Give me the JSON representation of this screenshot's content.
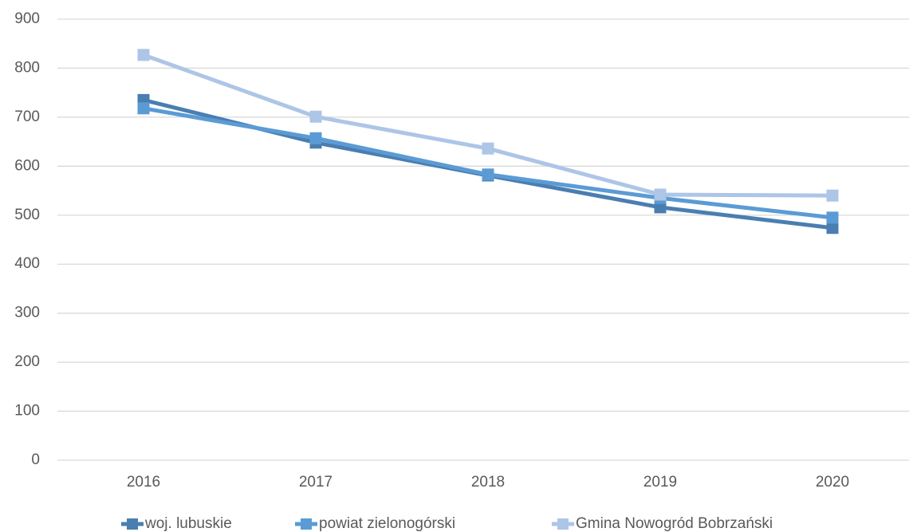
{
  "chart_data": {
    "type": "line",
    "categories": [
      "2016",
      "2017",
      "2018",
      "2019",
      "2020"
    ],
    "series": [
      {
        "name": "woj. lubuskie",
        "color": "#4a7eb0",
        "values": [
          735,
          648,
          581,
          516,
          474
        ]
      },
      {
        "name": "powiat zielonogórski",
        "color": "#5b9bd5",
        "values": [
          718,
          657,
          583,
          535,
          495
        ]
      },
      {
        "name": "Gmina Nowogród Bobrzański",
        "color": "#adc5e7",
        "values": [
          827,
          701,
          636,
          542,
          540
        ]
      }
    ],
    "ylim": [
      0,
      900
    ],
    "yticks": [
      0,
      100,
      200,
      300,
      400,
      500,
      600,
      700,
      800,
      900
    ],
    "grid": true,
    "legend": "bottom"
  }
}
